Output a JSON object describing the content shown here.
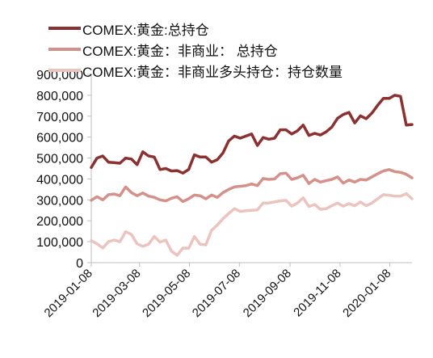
{
  "chart_data": {
    "type": "line",
    "title": "",
    "xlabel": "",
    "ylabel": "",
    "ylim": [
      0,
      900000
    ],
    "yticks": [
      0,
      100000,
      200000,
      300000,
      400000,
      500000,
      600000,
      700000,
      800000,
      900000
    ],
    "ytick_labels": [
      "0",
      "100,000",
      "200,000",
      "300,000",
      "400,000",
      "500,000",
      "600,000",
      "700,000",
      "800,000",
      "900,000"
    ],
    "xtick_labels": [
      "2019-01-08",
      "2019-03-08",
      "2019-05-08",
      "2019-07-08",
      "2019-09-08",
      "2019-11-08",
      "2020-01-08"
    ],
    "grid": false,
    "legend_position": "top-left",
    "x": [
      "2019-01-08",
      "2019-01-15",
      "2019-01-22",
      "2019-01-29",
      "2019-02-05",
      "2019-02-12",
      "2019-02-19",
      "2019-02-26",
      "2019-03-05",
      "2019-03-12",
      "2019-03-19",
      "2019-03-26",
      "2019-04-02",
      "2019-04-09",
      "2019-04-16",
      "2019-04-23",
      "2019-04-30",
      "2019-05-07",
      "2019-05-14",
      "2019-05-21",
      "2019-05-28",
      "2019-06-04",
      "2019-06-11",
      "2019-06-18",
      "2019-06-25",
      "2019-07-02",
      "2019-07-09",
      "2019-07-16",
      "2019-07-23",
      "2019-07-30",
      "2019-08-06",
      "2019-08-13",
      "2019-08-20",
      "2019-08-27",
      "2019-09-03",
      "2019-09-10",
      "2019-09-17",
      "2019-09-24",
      "2019-10-01",
      "2019-10-08",
      "2019-10-15",
      "2019-10-22",
      "2019-10-29",
      "2019-11-05",
      "2019-11-12",
      "2019-11-19",
      "2019-11-26",
      "2019-12-03",
      "2019-12-10",
      "2019-12-17",
      "2019-12-24",
      "2019-12-31",
      "2020-01-07",
      "2020-01-14",
      "2020-01-21",
      "2020-01-28",
      "2020-02-04"
    ],
    "series": [
      {
        "name": "COMEX:黄金:总持仓",
        "color": "#8b3131",
        "values": [
          455000,
          500000,
          510000,
          480000,
          478000,
          475000,
          500000,
          495000,
          468000,
          530000,
          510000,
          505000,
          445000,
          450000,
          438000,
          440000,
          428000,
          445000,
          515000,
          505000,
          505000,
          480000,
          492000,
          525000,
          582000,
          605000,
          595000,
          605000,
          615000,
          560000,
          598000,
          590000,
          595000,
          635000,
          635000,
          615000,
          630000,
          658000,
          608000,
          618000,
          610000,
          625000,
          648000,
          690000,
          708000,
          718000,
          668000,
          702000,
          688000,
          715000,
          752000,
          785000,
          785000,
          800000,
          795000,
          658000,
          660000
        ]
      },
      {
        "name": "COMEX:黄金：非商业： 总持仓",
        "color": "#d4918a",
        "values": [
          298000,
          315000,
          300000,
          325000,
          328000,
          320000,
          362000,
          335000,
          320000,
          333000,
          318000,
          312000,
          300000,
          295000,
          308000,
          315000,
          292000,
          305000,
          323000,
          320000,
          305000,
          323000,
          312000,
          335000,
          350000,
          362000,
          365000,
          368000,
          376000,
          368000,
          402000,
          398000,
          400000,
          425000,
          428000,
          398000,
          405000,
          418000,
          378000,
          398000,
          385000,
          392000,
          398000,
          410000,
          380000,
          395000,
          385000,
          398000,
          395000,
          410000,
          425000,
          438000,
          445000,
          435000,
          432000,
          422000,
          405000
        ]
      },
      {
        "name": "COMEX:黄金：非商业多头持仓：持仓数量",
        "color": "#ebc3bf",
        "values": [
          105000,
          90000,
          70000,
          100000,
          108000,
          100000,
          148000,
          135000,
          90000,
          78000,
          88000,
          125000,
          98000,
          108000,
          55000,
          35000,
          70000,
          68000,
          125000,
          88000,
          85000,
          155000,
          180000,
          210000,
          235000,
          258000,
          245000,
          248000,
          250000,
          252000,
          285000,
          285000,
          290000,
          295000,
          298000,
          270000,
          285000,
          310000,
          268000,
          278000,
          255000,
          258000,
          272000,
          285000,
          270000,
          282000,
          272000,
          290000,
          272000,
          285000,
          305000,
          325000,
          322000,
          318000,
          318000,
          330000,
          305000
        ]
      }
    ]
  }
}
